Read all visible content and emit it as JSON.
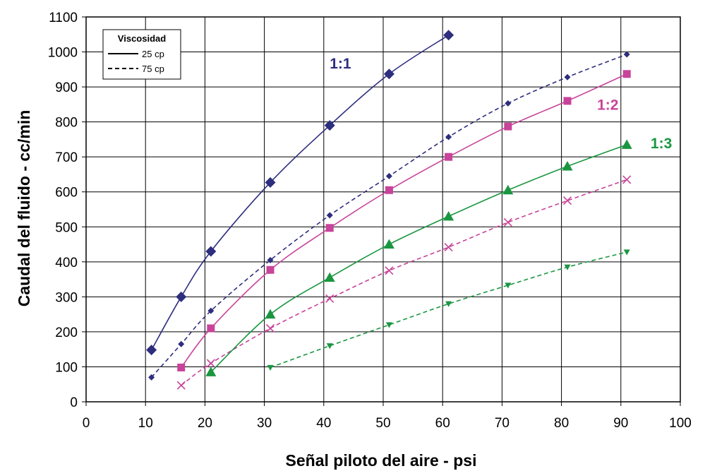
{
  "chart_data": {
    "type": "line",
    "xlabel": "Señal piloto del aire - psi",
    "ylabel": "Caudal del fluido - cc/min",
    "xlim": [
      0,
      100
    ],
    "ylim": [
      0,
      1100
    ],
    "x_ticks": [
      "0",
      "10",
      "20",
      "30",
      "40",
      "50",
      "60",
      "70",
      "80",
      "90",
      "100"
    ],
    "y_ticks": [
      "0",
      "100",
      "200",
      "300",
      "400",
      "500",
      "600",
      "700",
      "800",
      "900",
      "1000",
      "1100"
    ],
    "grid": true,
    "legend": {
      "placement": "top-left",
      "title": "Viscosidad",
      "entries": [
        {
          "label": "25 cp",
          "style": "solid"
        },
        {
          "label": "75 cp",
          "style": "dashed"
        }
      ]
    },
    "series": [
      {
        "group": "1:1",
        "viscosity": "25 cp",
        "style": "solid",
        "marker": "diamond",
        "color": "#2e2e7e",
        "x": [
          11,
          16,
          21,
          31,
          41,
          51,
          61
        ],
        "y": [
          148,
          300,
          430,
          627,
          790,
          937,
          1048
        ]
      },
      {
        "group": "1:1",
        "viscosity": "75 cp",
        "style": "dashed",
        "marker": "diamond-small",
        "color": "#2e2e7e",
        "x": [
          11,
          16,
          21,
          31,
          41,
          51,
          61,
          71,
          81,
          91
        ],
        "y": [
          70,
          165,
          260,
          405,
          533,
          645,
          757,
          853,
          928,
          993
        ]
      },
      {
        "group": "1:2",
        "viscosity": "25 cp",
        "style": "solid",
        "marker": "square",
        "color": "#c8439a",
        "x": [
          16,
          21,
          31,
          41,
          51,
          61,
          71,
          81,
          91
        ],
        "y": [
          98,
          210,
          377,
          497,
          605,
          700,
          787,
          860,
          937
        ]
      },
      {
        "group": "1:2",
        "viscosity": "75 cp",
        "style": "dashed",
        "marker": "x",
        "color": "#c8439a",
        "x": [
          16,
          21,
          31,
          41,
          51,
          61,
          71,
          81,
          91
        ],
        "y": [
          47,
          110,
          210,
          295,
          375,
          442,
          513,
          575,
          635
        ]
      },
      {
        "group": "1:3",
        "viscosity": "25 cp",
        "style": "solid",
        "marker": "triangle",
        "color": "#1a9641",
        "x": [
          21,
          31,
          41,
          51,
          61,
          71,
          81,
          91
        ],
        "y": [
          85,
          250,
          355,
          450,
          530,
          605,
          673,
          735
        ]
      },
      {
        "group": "1:3",
        "viscosity": "75 cp",
        "style": "dashed",
        "marker": "triangle-down",
        "color": "#1a9641",
        "x": [
          31,
          41,
          51,
          61,
          71,
          81,
          91
        ],
        "y": [
          98,
          160,
          220,
          280,
          333,
          385,
          428
        ]
      }
    ],
    "annotations": [
      {
        "text": "1:1",
        "color": "#2e2e7e",
        "x": 41,
        "y": 953
      },
      {
        "text": "1:2",
        "color": "#c8439a",
        "x": 86,
        "y": 835
      },
      {
        "text": "1:3",
        "color": "#1a9641",
        "x": 95,
        "y": 725
      }
    ]
  }
}
